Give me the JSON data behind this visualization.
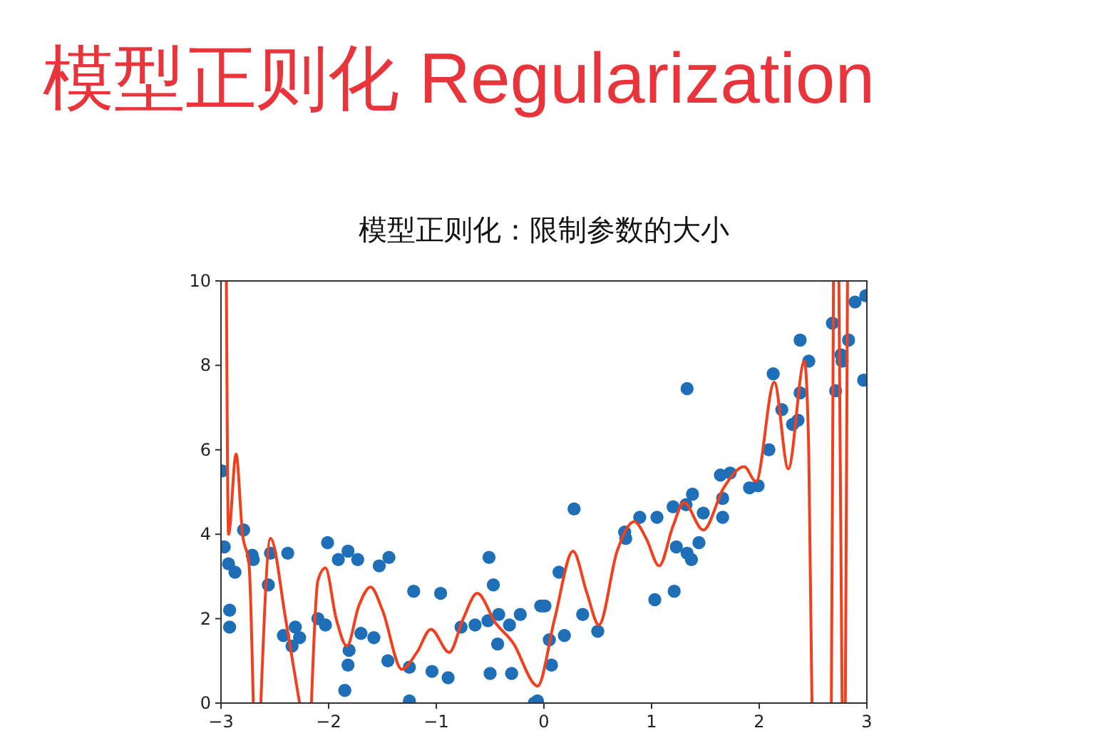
{
  "chart_data": {
    "type": "scatter",
    "title": "模型正则化 Regularization",
    "subtitle": "模型正则化：限制参数的大小",
    "xlim": [
      -3,
      3
    ],
    "ylim": [
      0,
      10
    ],
    "xticks": [
      {
        "value": -3,
        "label": "−3"
      },
      {
        "value": -2,
        "label": "−2"
      },
      {
        "value": -1,
        "label": "−1"
      },
      0,
      1,
      2,
      3
    ],
    "yticks": [
      0,
      2,
      4,
      6,
      8,
      10
    ],
    "grid": false,
    "marker": "circle",
    "series": [
      {
        "color": "#1f6fb8",
        "x": [
          -2.99,
          -2.97,
          -2.93,
          -2.87,
          -2.92,
          -2.92,
          -2.79,
          -2.71,
          -2.7,
          -2.56,
          -2.54,
          -2.38,
          -2.42,
          -2.34,
          -2.31,
          -2.27,
          -2.1,
          -2.03,
          -2.01,
          -1.91,
          -1.82,
          -1.73,
          -1.81,
          -1.82,
          -1.85,
          -1.7,
          -1.58,
          -1.53,
          -1.44,
          -1.45,
          -1.21,
          -1.25,
          -1.25,
          -1.04,
          -0.96,
          -0.89,
          -0.77,
          -0.64,
          -0.52,
          -0.51,
          -0.47,
          -0.42,
          -0.43,
          -0.5,
          -0.32,
          -0.3,
          -0.22,
          -0.06,
          -0.03,
          -0.09,
          0.01,
          0.05,
          0.07,
          0.14,
          0.19,
          0.28,
          0.36,
          0.5,
          0.75,
          0.76,
          0.89,
          1.03,
          1.05,
          1.21,
          1.2,
          1.23,
          1.33,
          1.32,
          1.33,
          1.37,
          1.38,
          1.44,
          1.48,
          1.64,
          1.73,
          1.66,
          1.66,
          1.91,
          1.99,
          2.09,
          2.13,
          2.21,
          2.31,
          2.36,
          2.38,
          2.38,
          2.46,
          2.68,
          2.71,
          2.76,
          2.77,
          2.83,
          2.89,
          2.99,
          2.97
        ],
        "values": [
          5.5,
          3.7,
          3.3,
          3.1,
          2.2,
          1.8,
          4.1,
          3.5,
          3.4,
          2.8,
          3.55,
          3.55,
          1.6,
          1.35,
          1.8,
          1.55,
          2.0,
          1.85,
          3.8,
          3.4,
          3.6,
          3.4,
          1.25,
          0.9,
          0.3,
          1.65,
          1.55,
          3.25,
          3.45,
          1.0,
          2.65,
          0.85,
          0.05,
          0.75,
          2.6,
          0.6,
          1.8,
          1.85,
          1.95,
          3.45,
          2.8,
          2.1,
          1.4,
          0.7,
          1.85,
          0.7,
          2.1,
          0.05,
          2.3,
          0,
          2.3,
          1.5,
          0.9,
          3.1,
          1.6,
          4.6,
          2.1,
          1.7,
          4.05,
          3.9,
          4.4,
          2.45,
          4.4,
          2.65,
          4.65,
          3.7,
          7.45,
          4.7,
          3.55,
          3.4,
          4.95,
          3.8,
          4.5,
          5.4,
          5.45,
          4.85,
          4.4,
          5.1,
          5.15,
          6.0,
          7.8,
          6.95,
          6.6,
          6.7,
          7.35,
          8.6,
          8.1,
          9.0,
          7.4,
          8.25,
          8.1,
          8.6,
          9.5,
          9.65,
          7.65
        ]
      },
      {
        "type": "line",
        "color": "#f0401e",
        "marker": "none",
        "line_style": "solid",
        "x": [
          -2.95,
          -2.93,
          -2.86,
          -2.8,
          -2.74,
          -2.7,
          -2.67,
          -2.63,
          -2.54,
          -2.4,
          -2.27,
          -2.22,
          -2.16,
          -2.1,
          -2.03,
          -1.93,
          -1.83,
          -1.72,
          -1.61,
          -1.5,
          -1.32,
          -1.18,
          -1.05,
          -0.88,
          -0.75,
          -0.62,
          -0.45,
          -0.28,
          -0.09,
          -0.06,
          0.1,
          0.27,
          0.4,
          0.51,
          0.68,
          0.84,
          0.95,
          1.07,
          1.2,
          1.3,
          1.48,
          1.67,
          1.86,
          1.97,
          2.14,
          2.27,
          2.42,
          2.46,
          2.49,
          2.58,
          2.67,
          2.69,
          2.72,
          2.74,
          2.77,
          2.79,
          2.8,
          2.82
        ],
        "values": [
          10,
          4.0,
          5.9,
          4.0,
          3.3,
          0,
          null,
          0,
          3.9,
          2.0,
          0,
          null,
          0,
          2.9,
          3.2,
          2.0,
          1.35,
          2.3,
          2.75,
          2.2,
          0.8,
          1.2,
          1.75,
          1.2,
          2.0,
          2.6,
          1.9,
          1.4,
          0.45,
          0.4,
          2.0,
          3.6,
          2.6,
          1.85,
          3.6,
          4.3,
          3.9,
          3.25,
          4.2,
          4.75,
          4.1,
          5.1,
          5.6,
          5.25,
          7.6,
          5.55,
          8.1,
          6.0,
          0,
          null,
          0,
          10,
          null,
          10,
          0,
          null,
          0,
          10
        ]
      }
    ]
  }
}
